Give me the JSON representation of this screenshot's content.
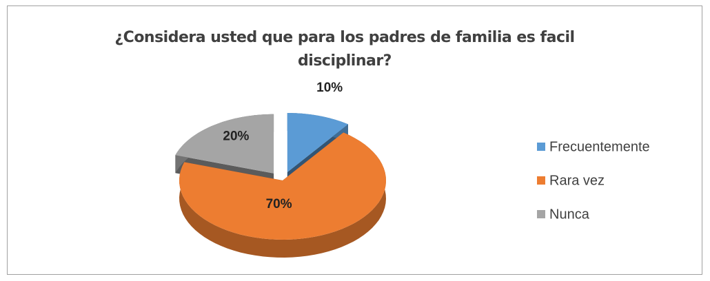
{
  "chart_data": {
    "type": "pie",
    "title": "¿Considera usted que para los padres de familia es facil disciplinar?",
    "categories": [
      "Frecuentemente",
      "Rara vez",
      "Nunca"
    ],
    "values": [
      10,
      70,
      20
    ],
    "value_labels": [
      "10%",
      "70%",
      "20%"
    ],
    "colors": [
      "#5b9bd5",
      "#ed7d31",
      "#a5a5a5"
    ],
    "legend": "right"
  }
}
